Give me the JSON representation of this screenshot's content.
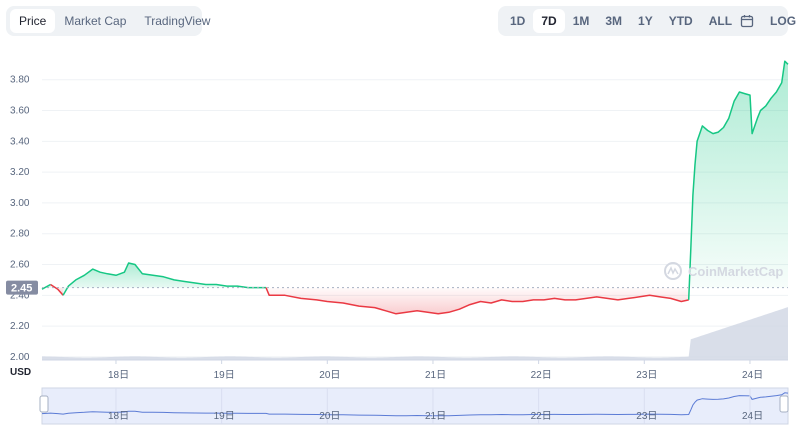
{
  "tabs_left": [
    {
      "label": "Price",
      "active": true
    },
    {
      "label": "Market Cap",
      "active": false
    },
    {
      "label": "TradingView",
      "active": false
    }
  ],
  "tabs_right": [
    {
      "label": "1D",
      "active": false
    },
    {
      "label": "7D",
      "active": true
    },
    {
      "label": "1M",
      "active": false
    },
    {
      "label": "3M",
      "active": false
    },
    {
      "label": "1Y",
      "active": false
    },
    {
      "label": "YTD",
      "active": false
    },
    {
      "label": "ALL",
      "active": false
    }
  ],
  "calendar_icon": "calendar-icon",
  "log_label": "LOG",
  "watermark": "CoinMarketCap",
  "currency_label": "USD",
  "colors": {
    "up": "#16c784",
    "down": "#ea3943",
    "volume": "#cfd6e4",
    "nav_fill": "#e8edfb",
    "nav_line": "#5b7bd5"
  },
  "chart_data": {
    "type": "line",
    "title": "",
    "xlabel": "",
    "ylabel": "USD",
    "ylim": [
      1.98,
      3.98
    ],
    "y_ticks": [
      "2.00",
      "2.20",
      "2.40",
      "2.60",
      "2.80",
      "3.00",
      "3.20",
      "3.40",
      "3.60",
      "3.80"
    ],
    "x_ticks": [
      "18日",
      "19日",
      "20日",
      "21日",
      "22日",
      "23日",
      "24日"
    ],
    "reference_price": "2.45",
    "series": [
      {
        "points": [
          [
            17.3,
            2.44
          ],
          [
            17.38,
            2.47
          ],
          [
            17.45,
            2.44
          ],
          [
            17.5,
            2.4
          ],
          [
            17.55,
            2.46
          ],
          [
            17.62,
            2.5
          ],
          [
            17.7,
            2.53
          ],
          [
            17.78,
            2.57
          ],
          [
            17.85,
            2.55
          ],
          [
            17.92,
            2.54
          ],
          [
            18.0,
            2.53
          ],
          [
            18.08,
            2.55
          ],
          [
            18.12,
            2.61
          ],
          [
            18.18,
            2.6
          ],
          [
            18.25,
            2.54
          ],
          [
            18.35,
            2.53
          ],
          [
            18.45,
            2.52
          ],
          [
            18.55,
            2.5
          ],
          [
            18.65,
            2.49
          ],
          [
            18.75,
            2.48
          ],
          [
            18.85,
            2.47
          ],
          [
            18.95,
            2.47
          ],
          [
            19.05,
            2.46
          ],
          [
            19.15,
            2.46
          ],
          [
            19.25,
            2.45
          ],
          [
            19.35,
            2.45
          ],
          [
            19.42,
            2.45
          ],
          [
            19.45,
            2.4
          ],
          [
            19.6,
            2.4
          ],
          [
            19.75,
            2.38
          ],
          [
            19.9,
            2.37
          ],
          [
            20.0,
            2.36
          ],
          [
            20.15,
            2.35
          ],
          [
            20.3,
            2.33
          ],
          [
            20.45,
            2.32
          ],
          [
            20.55,
            2.3
          ],
          [
            20.65,
            2.28
          ],
          [
            20.75,
            2.29
          ],
          [
            20.85,
            2.3
          ],
          [
            20.95,
            2.29
          ],
          [
            21.05,
            2.28
          ],
          [
            21.15,
            2.29
          ],
          [
            21.25,
            2.31
          ],
          [
            21.35,
            2.34
          ],
          [
            21.45,
            2.36
          ],
          [
            21.55,
            2.35
          ],
          [
            21.65,
            2.37
          ],
          [
            21.75,
            2.36
          ],
          [
            21.85,
            2.36
          ],
          [
            21.95,
            2.37
          ],
          [
            22.05,
            2.37
          ],
          [
            22.15,
            2.38
          ],
          [
            22.25,
            2.37
          ],
          [
            22.35,
            2.37
          ],
          [
            22.45,
            2.38
          ],
          [
            22.55,
            2.39
          ],
          [
            22.65,
            2.38
          ],
          [
            22.75,
            2.37
          ],
          [
            22.85,
            2.38
          ],
          [
            22.95,
            2.39
          ],
          [
            23.05,
            2.4
          ],
          [
            23.15,
            2.39
          ],
          [
            23.25,
            2.38
          ],
          [
            23.35,
            2.36
          ],
          [
            23.42,
            2.37
          ],
          [
            23.44,
            2.7
          ],
          [
            23.46,
            3.05
          ],
          [
            23.48,
            3.25
          ],
          [
            23.5,
            3.4
          ],
          [
            23.55,
            3.5
          ],
          [
            23.6,
            3.47
          ],
          [
            23.65,
            3.45
          ],
          [
            23.7,
            3.46
          ],
          [
            23.75,
            3.49
          ],
          [
            23.8,
            3.55
          ],
          [
            23.85,
            3.66
          ],
          [
            23.9,
            3.72
          ],
          [
            23.95,
            3.71
          ],
          [
            24.0,
            3.7
          ],
          [
            24.02,
            3.45
          ],
          [
            24.07,
            3.55
          ],
          [
            24.1,
            3.6
          ],
          [
            24.15,
            3.63
          ],
          [
            24.2,
            3.68
          ],
          [
            24.25,
            3.72
          ],
          [
            24.3,
            3.78
          ],
          [
            24.33,
            3.92
          ],
          [
            24.36,
            3.9
          ]
        ]
      }
    ]
  }
}
